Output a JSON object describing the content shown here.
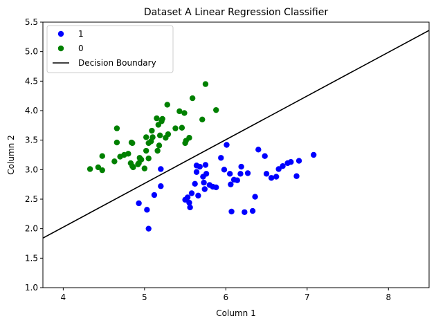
{
  "chart_data": {
    "type": "scatter",
    "title": "Dataset A Linear Regression Classifier",
    "xlabel": "Column 1",
    "ylabel": "Column 2",
    "xlim": [
      3.75,
      8.5
    ],
    "ylim": [
      1.0,
      5.5
    ],
    "xticks": [
      4,
      5,
      6,
      7,
      8
    ],
    "yticks": [
      1.0,
      1.5,
      2.0,
      2.5,
      3.0,
      3.5,
      4.0,
      4.5,
      5.0,
      5.5
    ],
    "grid": false,
    "legend_position": "top-left",
    "series": [
      {
        "name": "1",
        "color": "#0000ff",
        "points": [
          [
            4.93,
            2.43
          ],
          [
            5.03,
            2.32
          ],
          [
            5.05,
            2.0
          ],
          [
            5.12,
            2.57
          ],
          [
            5.2,
            2.72
          ],
          [
            5.2,
            3.01
          ],
          [
            5.5,
            2.49
          ],
          [
            5.53,
            2.53
          ],
          [
            5.55,
            2.44
          ],
          [
            5.56,
            2.36
          ],
          [
            5.58,
            2.6
          ],
          [
            5.62,
            2.76
          ],
          [
            5.64,
            3.07
          ],
          [
            5.64,
            2.96
          ],
          [
            5.66,
            2.56
          ],
          [
            5.68,
            3.05
          ],
          [
            5.72,
            2.88
          ],
          [
            5.73,
            2.78
          ],
          [
            5.74,
            2.67
          ],
          [
            5.75,
            3.08
          ],
          [
            5.76,
            2.93
          ],
          [
            5.8,
            2.74
          ],
          [
            5.84,
            2.71
          ],
          [
            5.88,
            2.7
          ],
          [
            5.94,
            3.2
          ],
          [
            5.98,
            3.0
          ],
          [
            6.01,
            3.42
          ],
          [
            6.05,
            2.93
          ],
          [
            6.06,
            2.75
          ],
          [
            6.07,
            2.29
          ],
          [
            6.1,
            2.83
          ],
          [
            6.14,
            2.82
          ],
          [
            6.18,
            2.93
          ],
          [
            6.19,
            3.05
          ],
          [
            6.23,
            2.28
          ],
          [
            6.27,
            2.94
          ],
          [
            6.33,
            2.3
          ],
          [
            6.36,
            2.54
          ],
          [
            6.4,
            3.34
          ],
          [
            6.48,
            3.23
          ],
          [
            6.5,
            2.93
          ],
          [
            6.56,
            2.86
          ],
          [
            6.62,
            2.88
          ],
          [
            6.65,
            3.01
          ],
          [
            6.7,
            3.06
          ],
          [
            6.76,
            3.11
          ],
          [
            6.8,
            3.13
          ],
          [
            6.87,
            2.89
          ],
          [
            6.9,
            3.15
          ],
          [
            7.08,
            3.25
          ]
        ]
      },
      {
        "name": "0",
        "color": "#008000",
        "points": [
          [
            4.33,
            3.01
          ],
          [
            4.43,
            3.04
          ],
          [
            4.48,
            3.23
          ],
          [
            4.48,
            2.99
          ],
          [
            4.63,
            3.14
          ],
          [
            4.66,
            3.7
          ],
          [
            4.66,
            3.46
          ],
          [
            4.7,
            3.22
          ],
          [
            4.75,
            3.25
          ],
          [
            4.8,
            3.27
          ],
          [
            4.83,
            3.11
          ],
          [
            4.84,
            3.46
          ],
          [
            4.85,
            3.06
          ],
          [
            4.85,
            3.45
          ],
          [
            4.86,
            3.04
          ],
          [
            4.92,
            3.09
          ],
          [
            4.93,
            3.11
          ],
          [
            4.94,
            3.2
          ],
          [
            4.96,
            3.17
          ],
          [
            5.0,
            3.02
          ],
          [
            5.02,
            3.55
          ],
          [
            5.02,
            3.32
          ],
          [
            5.05,
            3.19
          ],
          [
            5.05,
            3.45
          ],
          [
            5.08,
            3.48
          ],
          [
            5.09,
            3.66
          ],
          [
            5.1,
            3.55
          ],
          [
            5.15,
            3.87
          ],
          [
            5.16,
            3.32
          ],
          [
            5.17,
            3.76
          ],
          [
            5.18,
            3.41
          ],
          [
            5.19,
            3.58
          ],
          [
            5.21,
            3.82
          ],
          [
            5.22,
            3.86
          ],
          [
            5.26,
            3.54
          ],
          [
            5.28,
            4.1
          ],
          [
            5.29,
            3.6
          ],
          [
            5.38,
            3.7
          ],
          [
            5.43,
            3.99
          ],
          [
            5.46,
            3.71
          ],
          [
            5.49,
            3.96
          ],
          [
            5.5,
            3.45
          ],
          [
            5.51,
            3.49
          ],
          [
            5.55,
            3.54
          ],
          [
            5.59,
            4.21
          ],
          [
            5.71,
            3.85
          ],
          [
            5.75,
            4.45
          ],
          [
            5.88,
            4.01
          ]
        ]
      }
    ],
    "lines": [
      {
        "name": "Decision Boundary",
        "color": "#000000",
        "x": [
          3.75,
          8.5
        ],
        "y": [
          1.84,
          5.36
        ]
      }
    ]
  }
}
